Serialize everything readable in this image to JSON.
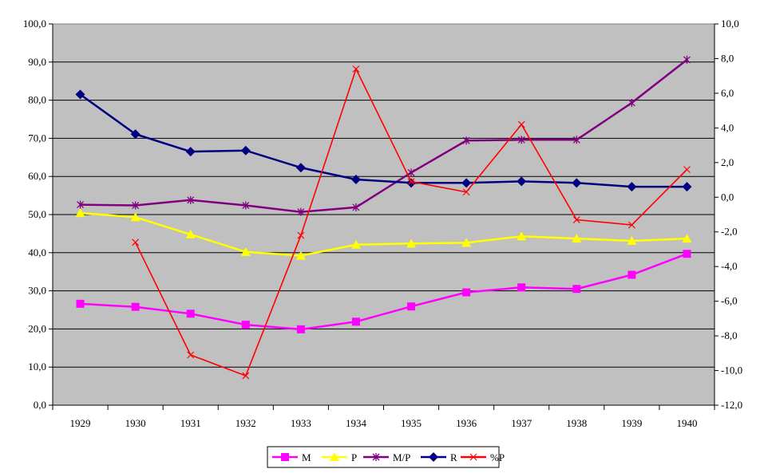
{
  "chart_data": {
    "type": "line",
    "categories": [
      "1929",
      "1930",
      "1931",
      "1932",
      "1933",
      "1934",
      "1935",
      "1936",
      "1937",
      "1938",
      "1939",
      "1940"
    ],
    "y_left": {
      "range": [
        0,
        100
      ],
      "step": 10,
      "tick_labels": [
        "0,0",
        "10,0",
        "20,0",
        "30,0",
        "40,0",
        "50,0",
        "60,0",
        "70,0",
        "80,0",
        "90,0",
        "100,0"
      ]
    },
    "y_right": {
      "range": [
        -12,
        10
      ],
      "step": 2,
      "tick_labels": [
        "-12,0",
        "-10,0",
        "-8,0",
        "-6,0",
        "-4,0",
        "-2,0",
        "0,0",
        "2,0",
        "4,0",
        "6,0",
        "8,0",
        "10,0"
      ]
    },
    "grid": true,
    "legend_position": "bottom",
    "plot_background": "#c0c0c0",
    "series": [
      {
        "name": "M",
        "axis": "left",
        "color": "#ff00ff",
        "marker": "square",
        "values": [
          26.6,
          25.8,
          24.0,
          21.1,
          19.9,
          21.9,
          25.9,
          29.6,
          30.9,
          30.5,
          34.2,
          39.7
        ]
      },
      {
        "name": "P",
        "axis": "left",
        "color": "#ffff00",
        "marker": "triangle",
        "values": [
          50.4,
          49.3,
          44.8,
          40.2,
          39.2,
          42.1,
          42.4,
          42.6,
          44.3,
          43.7,
          43.1,
          43.7
        ]
      },
      {
        "name": "M/P",
        "axis": "left",
        "color": "#800080",
        "marker": "star",
        "values": [
          52.6,
          52.4,
          53.8,
          52.4,
          50.7,
          51.9,
          61.0,
          69.4,
          69.6,
          69.6,
          79.3,
          90.6
        ]
      },
      {
        "name": "R",
        "axis": "left",
        "color": "#000080",
        "marker": "diamond",
        "values": [
          81.5,
          71.1,
          66.5,
          66.8,
          62.3,
          59.2,
          58.3,
          58.3,
          58.7,
          58.3,
          57.3,
          57.3
        ]
      },
      {
        "name": "%P",
        "axis": "right",
        "color": "#ff0000",
        "marker": "x",
        "values": [
          null,
          -2.6,
          -9.1,
          -10.3,
          -2.2,
          7.4,
          0.9,
          0.3,
          4.2,
          -1.3,
          -1.6,
          1.6
        ]
      }
    ]
  }
}
